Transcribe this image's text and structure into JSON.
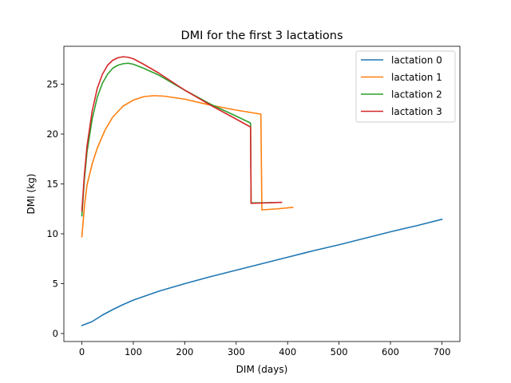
{
  "chart_data": {
    "type": "line",
    "title": "DMI for the first 3 lactations",
    "xlabel": "DIM (days)",
    "ylabel": "DMI (kg)",
    "xlim": [
      -35,
      735
    ],
    "ylim": [
      -0.8,
      28.8
    ],
    "xticks": [
      0,
      100,
      200,
      300,
      400,
      500,
      600,
      700
    ],
    "yticks": [
      0,
      5,
      10,
      15,
      20,
      25
    ],
    "grid": false,
    "legend": "top-right",
    "series": [
      {
        "name": "lactation 0",
        "color": "#1f77b4",
        "points": [
          [
            0,
            0.8
          ],
          [
            10,
            1.0
          ],
          [
            20,
            1.2
          ],
          [
            40,
            1.85
          ],
          [
            60,
            2.4
          ],
          [
            80,
            2.9
          ],
          [
            100,
            3.35
          ],
          [
            150,
            4.25
          ],
          [
            200,
            5.0
          ],
          [
            250,
            5.7
          ],
          [
            300,
            6.35
          ],
          [
            350,
            7.0
          ],
          [
            400,
            7.65
          ],
          [
            450,
            8.3
          ],
          [
            500,
            8.9
          ],
          [
            550,
            9.55
          ],
          [
            600,
            10.2
          ],
          [
            650,
            10.8
          ],
          [
            700,
            11.45
          ]
        ]
      },
      {
        "name": "lactation 1",
        "color": "#ff7f0e",
        "points": [
          [
            0,
            9.7
          ],
          [
            5,
            12.8
          ],
          [
            10,
            14.9
          ],
          [
            20,
            17.0
          ],
          [
            30,
            18.6
          ],
          [
            45,
            20.4
          ],
          [
            60,
            21.7
          ],
          [
            80,
            22.8
          ],
          [
            100,
            23.4
          ],
          [
            120,
            23.75
          ],
          [
            140,
            23.85
          ],
          [
            160,
            23.8
          ],
          [
            200,
            23.5
          ],
          [
            250,
            22.9
          ],
          [
            300,
            22.4
          ],
          [
            348,
            22.0
          ],
          [
            350,
            12.4
          ],
          [
            380,
            12.5
          ],
          [
            410,
            12.65
          ]
        ]
      },
      {
        "name": "lactation 2",
        "color": "#2ca02c",
        "points": [
          [
            0,
            11.8
          ],
          [
            5,
            15.5
          ],
          [
            10,
            18.2
          ],
          [
            20,
            21.5
          ],
          [
            30,
            23.7
          ],
          [
            40,
            25.1
          ],
          [
            50,
            26.0
          ],
          [
            60,
            26.6
          ],
          [
            70,
            26.9
          ],
          [
            80,
            27.05
          ],
          [
            90,
            27.1
          ],
          [
            100,
            27.0
          ],
          [
            120,
            26.6
          ],
          [
            150,
            25.9
          ],
          [
            200,
            24.4
          ],
          [
            250,
            23.0
          ],
          [
            300,
            21.8
          ],
          [
            328,
            21.1
          ],
          [
            329,
            13.1
          ],
          [
            360,
            13.12
          ],
          [
            388,
            13.15
          ]
        ]
      },
      {
        "name": "lactation 3",
        "color": "#d62728",
        "points": [
          [
            0,
            12.3
          ],
          [
            5,
            16.0
          ],
          [
            10,
            18.8
          ],
          [
            20,
            22.3
          ],
          [
            30,
            24.6
          ],
          [
            40,
            26.0
          ],
          [
            50,
            26.9
          ],
          [
            60,
            27.4
          ],
          [
            70,
            27.65
          ],
          [
            80,
            27.75
          ],
          [
            90,
            27.7
          ],
          [
            100,
            27.55
          ],
          [
            120,
            27.0
          ],
          [
            150,
            26.1
          ],
          [
            200,
            24.4
          ],
          [
            250,
            22.9
          ],
          [
            300,
            21.5
          ],
          [
            328,
            20.7
          ],
          [
            329,
            13.05
          ],
          [
            360,
            13.1
          ],
          [
            388,
            13.15
          ]
        ]
      }
    ]
  }
}
